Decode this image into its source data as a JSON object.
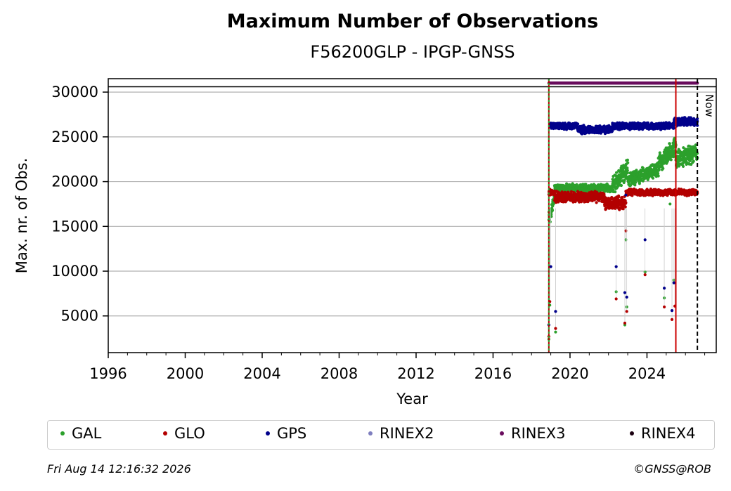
{
  "chart_data": {
    "type": "scatter",
    "title": "Maximum Number of Observations",
    "subtitle": "F56200GLP - IPGP-GNSS",
    "xlabel": "Year",
    "ylabel": "Max. nr. of Obs.",
    "xlim": [
      1996,
      2027.6
    ],
    "ylim": [
      900,
      31500
    ],
    "xticks": [
      "1996",
      "2000",
      "2004",
      "2008",
      "2012",
      "2016",
      "2020",
      "2024"
    ],
    "yticks": [
      "5000",
      "10000",
      "15000",
      "20000",
      "25000",
      "30000"
    ],
    "grid": "horizontal",
    "now_label": "Now",
    "now_x": 2026.62,
    "reference_line_y": 30600,
    "start_line_x": 2018.9,
    "event_line_x": 2025.5,
    "series": [
      {
        "name": "GAL",
        "color": "#2ca02c",
        "segments": [
          {
            "x": [
              2018.9,
              2019.2
            ],
            "y": [
              15800,
              18200
            ],
            "spread": 1200
          },
          {
            "x": [
              2019.2,
              2022.2
            ],
            "y": [
              19300,
              19300
            ],
            "spread": 500
          },
          {
            "x": [
              2022.2,
              2023.0
            ],
            "y": [
              19500,
              21500
            ],
            "spread": 1200
          },
          {
            "x": [
              2023.0,
              2024.6
            ],
            "y": [
              20200,
              21300
            ],
            "spread": 900
          },
          {
            "x": [
              2024.6,
              2025.5
            ],
            "y": [
              22000,
              24000
            ],
            "spread": 1200
          },
          {
            "x": [
              2025.5,
              2026.62
            ],
            "y": [
              22500,
              23200
            ],
            "spread": 1200
          }
        ],
        "outliers": [
          [
            2018.9,
            2400
          ],
          [
            2018.95,
            6200
          ],
          [
            2019.25,
            3200
          ],
          [
            2022.4,
            7700
          ],
          [
            2022.85,
            4000
          ],
          [
            2022.9,
            13500
          ],
          [
            2022.95,
            6000
          ],
          [
            2023.9,
            9900
          ],
          [
            2024.9,
            7000
          ],
          [
            2025.2,
            17500
          ],
          [
            2025.4,
            9000
          ]
        ]
      },
      {
        "name": "GLO",
        "color": "#b30000",
        "segments": [
          {
            "x": [
              2018.9,
              2019.2
            ],
            "y": [
              18800,
              18800
            ],
            "spread": 400
          },
          {
            "x": [
              2019.2,
              2021.8
            ],
            "y": [
              18300,
              18300
            ],
            "spread": 700
          },
          {
            "x": [
              2021.8,
              2022.9
            ],
            "y": [
              17600,
              17600
            ],
            "spread": 900
          },
          {
            "x": [
              2022.9,
              2026.62
            ],
            "y": [
              18800,
              18800
            ],
            "spread": 400
          }
        ],
        "outliers": [
          [
            2018.9,
            2700
          ],
          [
            2018.95,
            6600
          ],
          [
            2019.25,
            3600
          ],
          [
            2022.4,
            6900
          ],
          [
            2022.85,
            4200
          ],
          [
            2022.9,
            14500
          ],
          [
            2022.95,
            5500
          ],
          [
            2023.9,
            9600
          ],
          [
            2024.9,
            6000
          ],
          [
            2025.3,
            4600
          ],
          [
            2025.45,
            6100
          ]
        ]
      },
      {
        "name": "GPS",
        "color": "#00008b",
        "segments": [
          {
            "x": [
              2018.95,
              2020.4
            ],
            "y": [
              26200,
              26200
            ],
            "spread": 400
          },
          {
            "x": [
              2020.4,
              2022.2
            ],
            "y": [
              25800,
              25800
            ],
            "spread": 500
          },
          {
            "x": [
              2022.2,
              2025.4
            ],
            "y": [
              26200,
              26200
            ],
            "spread": 450
          },
          {
            "x": [
              2025.4,
              2026.62
            ],
            "y": [
              26700,
              26700
            ],
            "spread": 550
          }
        ],
        "outliers": [
          [
            2018.9,
            4000
          ],
          [
            2019.0,
            10500
          ],
          [
            2019.25,
            5500
          ],
          [
            2022.4,
            10500
          ],
          [
            2022.85,
            7600
          ],
          [
            2022.9,
            18500
          ],
          [
            2022.95,
            7100
          ],
          [
            2023.9,
            13500
          ],
          [
            2024.9,
            8100
          ],
          [
            2025.3,
            5600
          ],
          [
            2025.4,
            8700
          ]
        ]
      },
      {
        "name": "RINEX2",
        "color": "#7f7fbf",
        "segments": [],
        "outliers": []
      },
      {
        "name": "RINEX3",
        "color": "#6a0d5e",
        "segments": [
          {
            "x": [
              2018.9,
              2026.62
            ],
            "y": [
              31000,
              31000
            ],
            "spread": 0
          }
        ],
        "outliers": []
      },
      {
        "name": "RINEX4",
        "color": "#1a0010",
        "segments": [],
        "outliers": []
      }
    ]
  },
  "footer": {
    "timestamp": "Fri Aug 14 12:16:32 2026",
    "copyright": "©GNSS@ROB"
  }
}
